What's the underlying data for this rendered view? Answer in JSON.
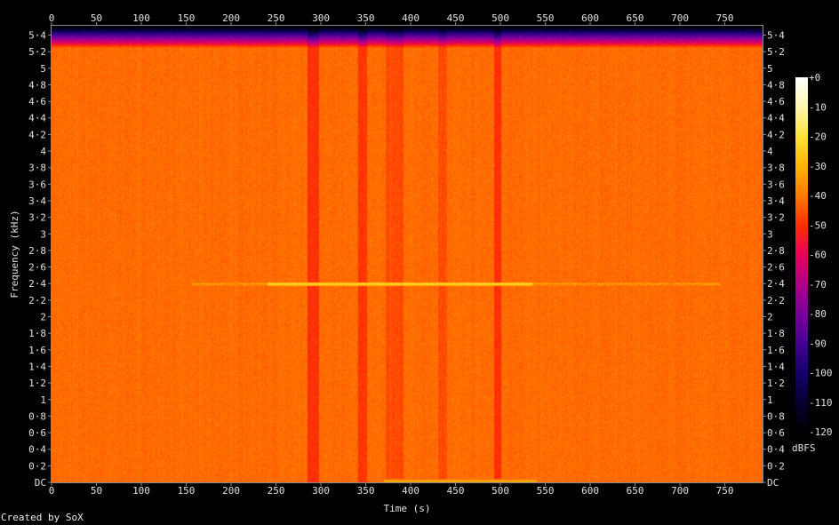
{
  "chart_data": {
    "type": "heatmap",
    "subtype": "spectrogram",
    "xlabel": "Time (s)",
    "ylabel": "Frequency (kHz)",
    "xlim": [
      0,
      792
    ],
    "ylim": [
      0,
      5.5125
    ],
    "x_ticks": [
      "0",
      "50",
      "100",
      "150",
      "200",
      "250",
      "300",
      "350",
      "400",
      "450",
      "500",
      "550",
      "600",
      "650",
      "700",
      "750"
    ],
    "y_ticks": [
      "DC",
      "0·2",
      "0·4",
      "0·6",
      "0·8",
      "1",
      "1·2",
      "1·4",
      "1·6",
      "1·8",
      "2",
      "2·2",
      "2·4",
      "2·6",
      "2·8",
      "3",
      "3·2",
      "3·4",
      "3·6",
      "3·8",
      "4",
      "4·2",
      "4·4",
      "4·6",
      "4·8",
      "5",
      "5·2",
      "5·4"
    ],
    "colorbar": {
      "label": "dBFS",
      "range": [
        -120,
        0
      ],
      "ticks": [
        "+0",
        "-10",
        "-20",
        "-30",
        "-40",
        "-50",
        "-60",
        "-70",
        "-80",
        "-90",
        "-100",
        "-110",
        "-120"
      ],
      "colors": [
        "#ffffff",
        "#fff7b0",
        "#ffe23a",
        "#ffb400",
        "#ff7a00",
        "#ff2e00",
        "#e8005a",
        "#b00086",
        "#7a009a",
        "#450090",
        "#16006a",
        "#050030",
        "#000000"
      ]
    },
    "background_level_dbfs": -42,
    "rolloff_above_khz": 5.25,
    "features": [
      {
        "kind": "tone",
        "freq_khz": 2.4,
        "t_start": 155,
        "t_end": 745,
        "peak_dbfs": -22,
        "strong_from": 240,
        "strong_to": 535
      },
      {
        "kind": "dark_band",
        "t_start": 285,
        "t_end": 297,
        "level_dbfs": -50
      },
      {
        "kind": "dark_band",
        "t_start": 341,
        "t_end": 351,
        "level_dbfs": -49
      },
      {
        "kind": "dark_band",
        "t_start": 372,
        "t_end": 392,
        "level_dbfs": -46
      },
      {
        "kind": "dark_band",
        "t_start": 430,
        "t_end": 440,
        "level_dbfs": -46
      },
      {
        "kind": "dark_band",
        "t_start": 493,
        "t_end": 500,
        "level_dbfs": -50
      },
      {
        "kind": "low_tone",
        "freq_khz": 0.02,
        "t_start": 370,
        "t_end": 540,
        "peak_dbfs": -30
      }
    ]
  },
  "credit": "Created by SoX"
}
